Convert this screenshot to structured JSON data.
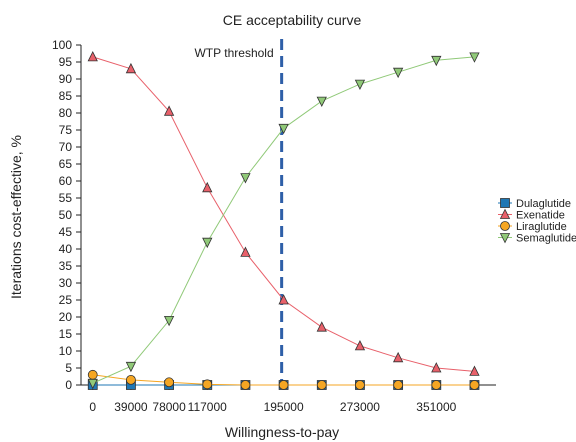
{
  "chart_data": {
    "type": "line",
    "title": "CE acceptability curve",
    "xlabel": "Willingness-to-pay",
    "ylabel": "Iterations cost-effective, %",
    "x": [
      0,
      39000,
      78000,
      117000,
      156000,
      195000,
      234000,
      273000,
      312000,
      351000,
      390000
    ],
    "x_tick_labels": [
      "0",
      "39000",
      "78000",
      "117000",
      "195000",
      "273000",
      "351000"
    ],
    "x_tick_values": [
      0,
      39000,
      78000,
      117000,
      195000,
      273000,
      351000
    ],
    "xlim": [
      -12000,
      412000
    ],
    "ylim": [
      0,
      100
    ],
    "y_ticks": [
      0,
      5,
      10,
      15,
      20,
      25,
      30,
      35,
      40,
      45,
      50,
      55,
      60,
      65,
      70,
      75,
      80,
      85,
      90,
      95,
      100
    ],
    "grid": false,
    "legend_position": "right",
    "series": [
      {
        "name": "Dulaglutide",
        "color": "#1f77b4",
        "marker": "square",
        "values": [
          0,
          0,
          0,
          0,
          0,
          0,
          0,
          0,
          0,
          0,
          0
        ]
      },
      {
        "name": "Exenatide",
        "color": "#e8606a",
        "marker": "triangle-up",
        "values": [
          96.5,
          93,
          80.5,
          58,
          39,
          25,
          17,
          11.5,
          8,
          5,
          4
        ]
      },
      {
        "name": "Liraglutide",
        "color": "#f5a623",
        "marker": "circle",
        "values": [
          3,
          1.5,
          0.8,
          0.2,
          0,
          0,
          0,
          0,
          0,
          0,
          0
        ]
      },
      {
        "name": "Semaglutide",
        "color": "#90c978",
        "marker": "triangle-down",
        "values": [
          0.5,
          5.5,
          19,
          42,
          61,
          75.5,
          83.5,
          88.5,
          92,
          95.5,
          96.5
        ]
      }
    ],
    "annotations": [
      {
        "text": "WTP threshold",
        "x": 193000,
        "line_color": "#2e5fa8"
      }
    ]
  }
}
